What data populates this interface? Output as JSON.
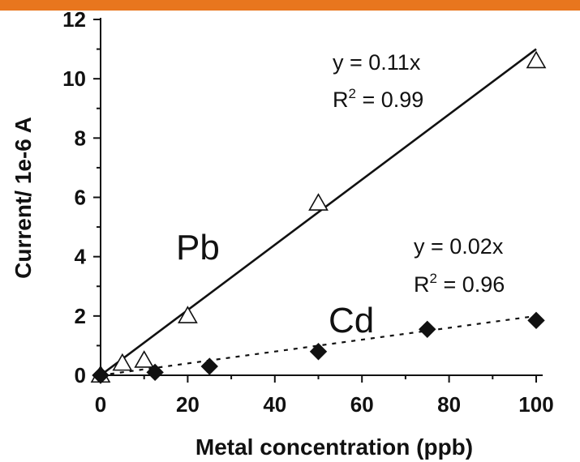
{
  "theme": {
    "top_bar_color": "#e8761e",
    "ink": "#111111"
  },
  "chart_data": {
    "type": "scatter",
    "xlabel": "Metal concentration (ppb)",
    "ylabel": "Current/ 1e-6 A",
    "xlim": [
      0,
      100
    ],
    "ylim": [
      0,
      12
    ],
    "xticks": [
      "0",
      "20",
      "40",
      "60",
      "80",
      "100"
    ],
    "yticks": [
      "0",
      "2",
      "4",
      "6",
      "8",
      "10",
      "12"
    ],
    "grid": false,
    "series": [
      {
        "name": "Pb",
        "marker": "open-triangle",
        "x": [
          0,
          5,
          10,
          20,
          50,
          100
        ],
        "y": [
          0.0,
          0.4,
          0.5,
          2.0,
          5.8,
          10.6
        ],
        "fit": {
          "slope": 0.11,
          "style": "solid",
          "equation": "y = 0.11x",
          "r2_prefix": "R",
          "r2_sup": "2",
          "r2_value": " = 0.99"
        }
      },
      {
        "name": "Cd",
        "marker": "filled-diamond",
        "x": [
          0,
          12.5,
          25,
          50,
          75,
          100
        ],
        "y": [
          0.0,
          0.1,
          0.3,
          0.8,
          1.55,
          1.85
        ],
        "fit": {
          "slope": 0.02,
          "style": "dashed",
          "equation": "y = 0.02x",
          "r2_prefix": "R",
          "r2_sup": "2",
          "r2_value": " = 0.96"
        }
      }
    ]
  }
}
